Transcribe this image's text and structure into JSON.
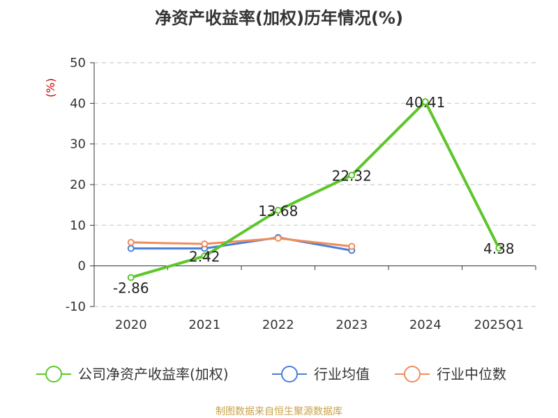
{
  "chart_data": {
    "type": "line",
    "title": "净资产收益率(加权)历年情况(%)",
    "ylabel": "(%)",
    "categories": [
      "2020",
      "2021",
      "2022",
      "2023",
      "2024",
      "2025Q1"
    ],
    "ylim": [
      -10,
      50
    ],
    "yticks": [
      -10,
      0,
      10,
      20,
      30,
      40,
      50
    ],
    "grid": true,
    "legend_position": "bottom",
    "series": [
      {
        "name": "公司净资产收益率(加权)",
        "color": "#5cc62a",
        "values": [
          -2.86,
          2.42,
          13.68,
          22.32,
          40.41,
          4.38
        ],
        "labels": [
          "-2.86",
          "2.42",
          "13.68",
          "22.32",
          "40.41",
          "4.38"
        ]
      },
      {
        "name": "行业均值",
        "color": "#4a7fd6",
        "values": [
          4.3,
          4.3,
          7.0,
          3.8,
          null,
          null
        ]
      },
      {
        "name": "行业中位数",
        "color": "#f08c5a",
        "values": [
          5.8,
          5.4,
          6.8,
          4.8,
          null,
          null
        ]
      }
    ]
  },
  "footer": {
    "source": "制图数据来自恒生聚源数据库"
  }
}
